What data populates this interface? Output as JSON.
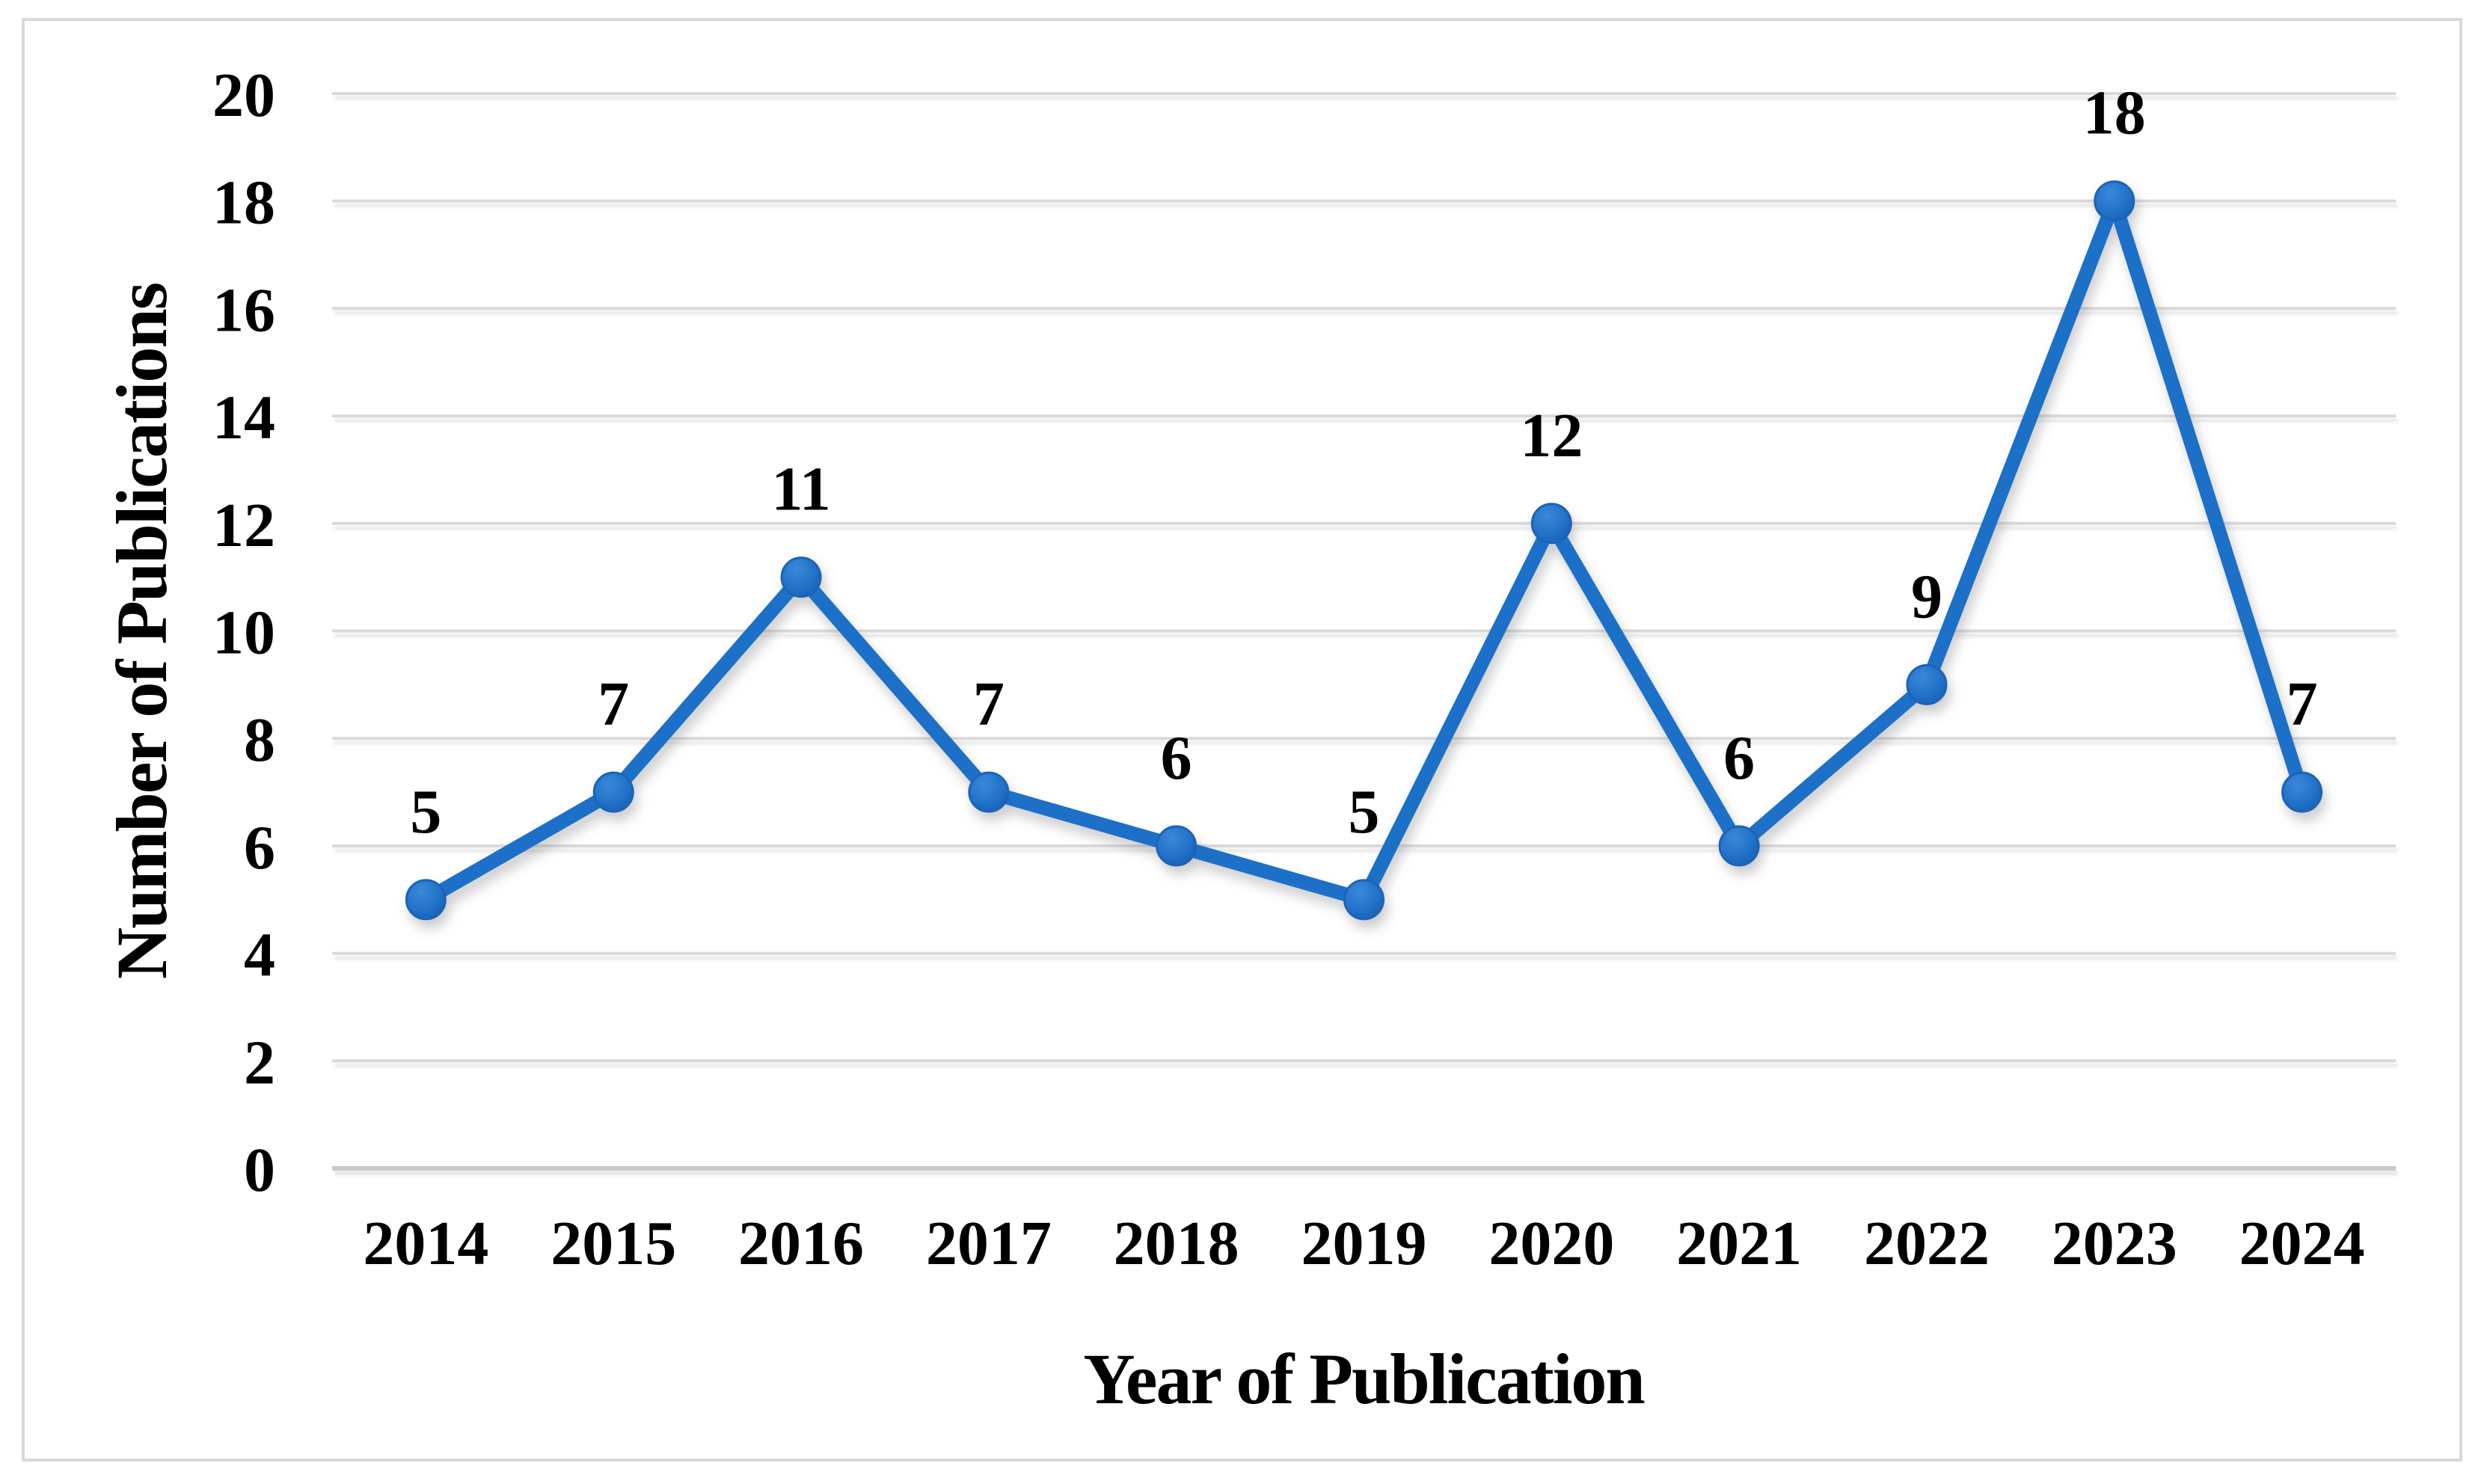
{
  "chart_data": {
    "type": "line",
    "title": "",
    "categories": [
      "2014",
      "2015",
      "2016",
      "2017",
      "2018",
      "2019",
      "2020",
      "2021",
      "2022",
      "2023",
      "2024"
    ],
    "series": [
      {
        "name": "Number of Publications",
        "values": [
          5,
          7,
          11,
          7,
          6,
          5,
          12,
          6,
          9,
          18,
          7
        ]
      }
    ],
    "data_labels": [
      5,
      7,
      11,
      7,
      6,
      5,
      12,
      6,
      9,
      18,
      7
    ],
    "xlabel": "Year of Publication",
    "ylabel": "Number of Publications",
    "ylim": [
      0,
      20
    ],
    "ytick_step": 2,
    "yticks": [
      0,
      2,
      4,
      6,
      8,
      10,
      12,
      14,
      16,
      18,
      20
    ],
    "grid": true,
    "legend": false,
    "colors": {
      "line": "#1B70C7",
      "marker_light": "#3A88D9",
      "marker_mid": "#2273C9",
      "marker_dark": "#155CAD",
      "marker_stroke": "#1A64B6",
      "gridline": "#D9D9D9",
      "baseline": "#C9C9C9",
      "text": "#000000",
      "frame": "#D9D9D9",
      "background": "#FFFFFF"
    }
  }
}
